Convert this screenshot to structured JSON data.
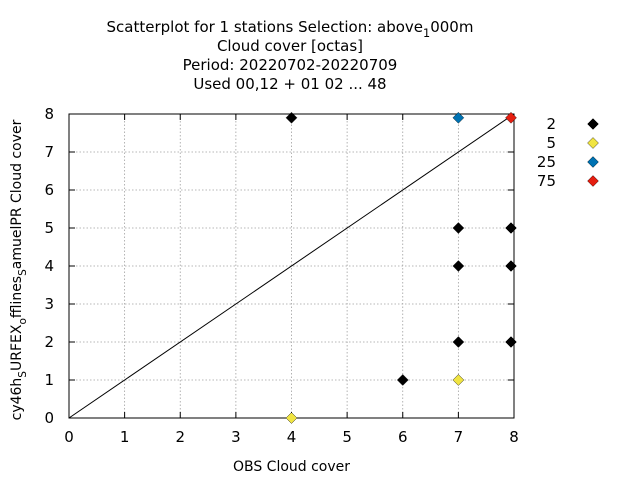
{
  "chart_data": {
    "type": "scatter",
    "title_lines": [
      {
        "parts": [
          {
            "text": "Scatterplot for    1 stations Selection: above",
            "sub": false
          },
          {
            "text": "1",
            "sub": true
          },
          {
            "text": "000m",
            "sub": false
          }
        ]
      },
      {
        "parts": [
          {
            "text": "Cloud cover [octas]",
            "sub": false
          }
        ]
      },
      {
        "parts": [
          {
            "text": "Period: 20220702-20220709",
            "sub": false
          }
        ]
      },
      {
        "parts": [
          {
            "text": "Used  00,12  + 01 02 ... 48",
            "sub": false
          }
        ]
      }
    ],
    "xlabel": "OBS Cloud cover",
    "ylabel_parts": [
      {
        "text": "cy46h",
        "sub": false
      },
      {
        "text": "S",
        "sub": true
      },
      {
        "text": "URFEX",
        "sub": false
      },
      {
        "text": "o",
        "sub": true
      },
      {
        "text": "fflines",
        "sub": false
      },
      {
        "text": "S",
        "sub": true
      },
      {
        "text": "amuelPR Cloud cover",
        "sub": false
      }
    ],
    "xlim": [
      0,
      8
    ],
    "ylim": [
      0,
      8
    ],
    "xticks": [
      "0",
      "1",
      "2",
      "3",
      "4",
      "5",
      "6",
      "7",
      "8"
    ],
    "yticks": [
      "0",
      "1",
      "2",
      "3",
      "4",
      "5",
      "6",
      "7",
      "8"
    ],
    "grid": true,
    "legend_position": "right",
    "diagonal": true,
    "series": [
      {
        "name": "2",
        "color": "#000000",
        "points": [
          [
            4,
            7.9
          ],
          [
            6,
            1
          ],
          [
            7,
            5
          ],
          [
            7,
            4
          ],
          [
            7,
            2
          ],
          [
            8,
            5
          ],
          [
            8,
            4
          ],
          [
            8,
            2
          ]
        ]
      },
      {
        "name": "5",
        "color": "#f0e442",
        "points": [
          [
            4,
            0
          ],
          [
            7,
            1
          ]
        ]
      },
      {
        "name": "25",
        "color": "#0072b2",
        "points": [
          [
            7,
            7.9
          ]
        ]
      },
      {
        "name": "75",
        "color": "#e51e10",
        "points": [
          [
            8,
            7.9
          ]
        ]
      }
    ]
  }
}
